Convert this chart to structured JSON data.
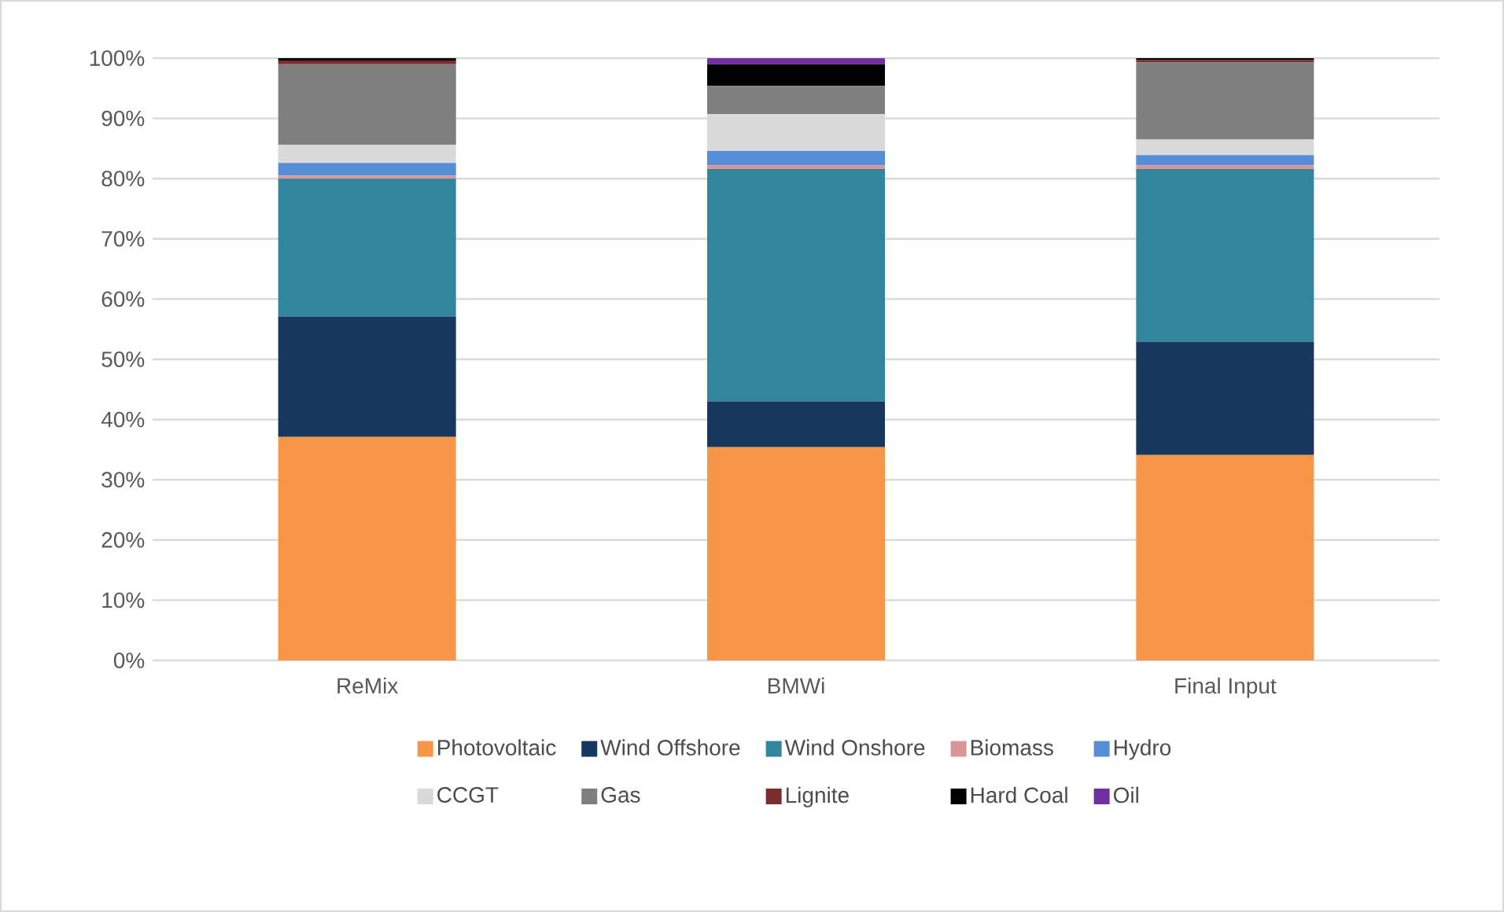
{
  "chart_data": {
    "type": "bar",
    "stacked": true,
    "categories": [
      "ReMix",
      "BMWi",
      "Final Input"
    ],
    "series": [
      {
        "name": "Photovoltaic",
        "color": "#f79646",
        "values": [
          37.1,
          35.4,
          34.1
        ]
      },
      {
        "name": "Wind Offshore",
        "color": "#17375e",
        "values": [
          20.0,
          7.6,
          18.8
        ]
      },
      {
        "name": "Wind Onshore",
        "color": "#31859c",
        "values": [
          22.9,
          38.6,
          28.7
        ]
      },
      {
        "name": "Biomass",
        "color": "#da9694",
        "values": [
          0.5,
          0.6,
          0.6
        ]
      },
      {
        "name": "Hydro",
        "color": "#558ed5",
        "values": [
          2.1,
          2.4,
          1.7
        ]
      },
      {
        "name": "CCGT",
        "color": "#d9d9d9",
        "values": [
          3.0,
          6.1,
          2.6
        ]
      },
      {
        "name": "Gas",
        "color": "#7f7f7f",
        "values": [
          13.4,
          4.7,
          12.8
        ]
      },
      {
        "name": "Lignite",
        "color": "#7b2c2c",
        "values": [
          0.6,
          0,
          0.4
        ]
      },
      {
        "name": "Hard Coal",
        "color": "#000000",
        "values": [
          0.4,
          3.6,
          0.3
        ]
      },
      {
        "name": "Oil",
        "color": "#7030a0",
        "values": [
          0,
          1.0,
          0
        ]
      }
    ],
    "ylim": [
      0,
      100
    ],
    "yticks": [
      {
        "value": 0,
        "label": "0%"
      },
      {
        "value": 10,
        "label": "10%"
      },
      {
        "value": 20,
        "label": "20%"
      },
      {
        "value": 30,
        "label": "30%"
      },
      {
        "value": 40,
        "label": "40%"
      },
      {
        "value": 50,
        "label": "50%"
      },
      {
        "value": 60,
        "label": "60%"
      },
      {
        "value": 70,
        "label": "70%"
      },
      {
        "value": 80,
        "label": "80%"
      },
      {
        "value": 90,
        "label": "90%"
      },
      {
        "value": 100,
        "label": "100%"
      }
    ],
    "grid": "y",
    "legend": "bottom"
  }
}
